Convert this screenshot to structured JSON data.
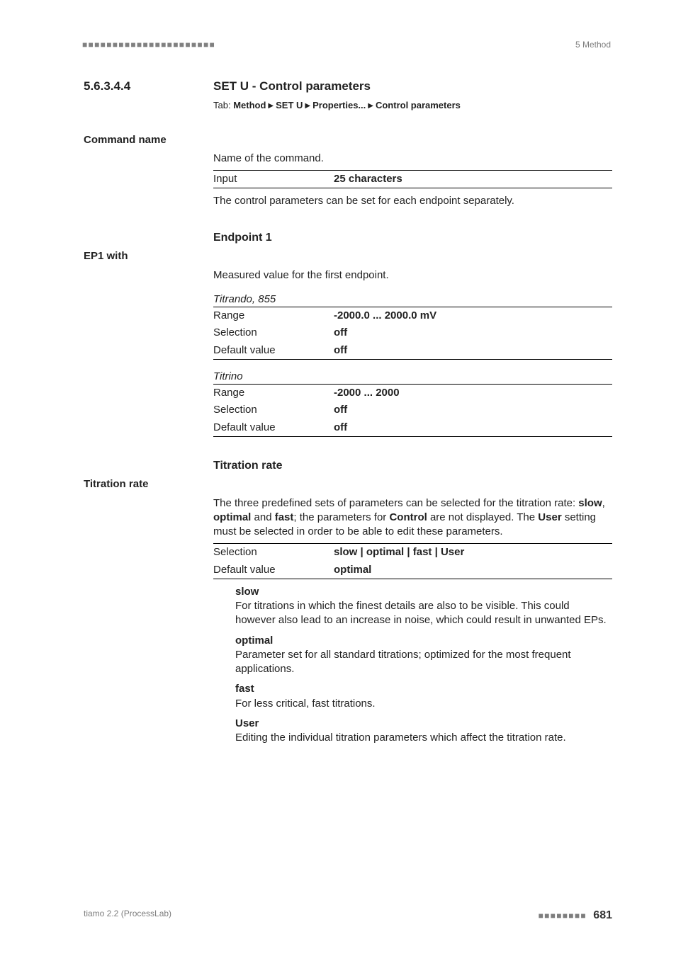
{
  "header": {
    "right_text": "5 Method"
  },
  "section": {
    "number": "5.6.3.4.4",
    "title": "SET U - Control parameters",
    "tab_label": "Tab:",
    "breadcrumbs": [
      "Method",
      "SET U",
      "Properties...",
      "Control parameters"
    ]
  },
  "f_command_name": {
    "label": "Command name",
    "description": "Name of the command.",
    "rows": [
      {
        "k": "Input",
        "v": "25 characters",
        "bold": true
      }
    ],
    "after_text": "The control parameters can be set for each endpoint separately."
  },
  "subhead_endpoint": "Endpoint 1",
  "f_ep1": {
    "label": "EP1 with",
    "description": "Measured value for the first endpoint.",
    "groups": [
      {
        "title": "Titrando, 855",
        "rows": [
          {
            "k": "Range",
            "v": "-2000.0 ... 2000.0 mV",
            "bold": true
          },
          {
            "k": "Selection",
            "v": "off",
            "bold": true
          },
          {
            "k": "Default value",
            "v": "off",
            "bold": true
          }
        ]
      },
      {
        "title": "Titrino",
        "rows": [
          {
            "k": "Range",
            "v": "-2000 ... 2000",
            "bold": true
          },
          {
            "k": "Selection",
            "v": "off",
            "bold": true
          },
          {
            "k": "Default value",
            "v": "off",
            "bold": true
          }
        ]
      }
    ]
  },
  "subhead_titration": "Titration rate",
  "f_titration": {
    "label": "Titration rate",
    "para_segments": [
      {
        "t": "The three predefined sets of parameters can be selected for the titration rate: "
      },
      {
        "t": "slow",
        "b": true
      },
      {
        "t": ", "
      },
      {
        "t": "optimal",
        "b": true
      },
      {
        "t": " and "
      },
      {
        "t": "fast",
        "b": true
      },
      {
        "t": "; the parameters for "
      },
      {
        "t": "Control",
        "b": true
      },
      {
        "t": " are not displayed. The "
      },
      {
        "t": "User",
        "b": true
      },
      {
        "t": " setting must be selected in order to be able to edit these parameters."
      }
    ],
    "rows": [
      {
        "k": "Selection",
        "v": "slow | optimal | fast | User",
        "bold": true
      },
      {
        "k": "Default value",
        "v": "optimal",
        "bold": true
      }
    ],
    "defs": [
      {
        "term": "slow",
        "body": "For titrations in which the finest details are also to be visible. This could however also lead to an increase in noise, which could result in unwanted EPs."
      },
      {
        "term": "optimal",
        "body": "Parameter set for all standard titrations; optimized for the most frequent applications."
      },
      {
        "term": "fast",
        "body": "For less critical, fast titrations."
      },
      {
        "term": "User",
        "body": "Editing the individual titration parameters which affect the titration rate."
      }
    ]
  },
  "footer": {
    "left": "tiamo 2.2 (ProcessLab)",
    "page": "681"
  }
}
